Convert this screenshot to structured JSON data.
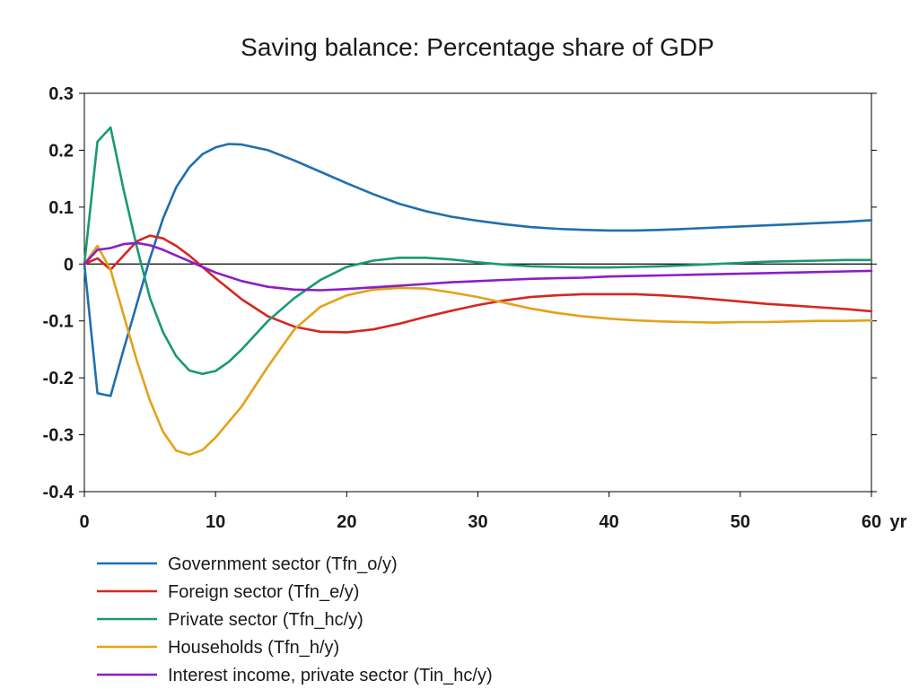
{
  "chart_data": {
    "type": "line",
    "title": "Saving balance: Percentage share of GDP",
    "xlabel": "",
    "ylabel": "",
    "x_unit_label": "yr",
    "xlim": [
      0,
      60
    ],
    "ylim": [
      -0.4,
      0.3
    ],
    "x_ticks": [
      0,
      10,
      20,
      30,
      40,
      50,
      60
    ],
    "x_tick_labels": [
      "0",
      "10",
      "20",
      "30",
      "40",
      "50",
      "60"
    ],
    "y_ticks": [
      -0.4,
      -0.3,
      -0.2,
      -0.1,
      0,
      0.1,
      0.2,
      0.3
    ],
    "y_tick_labels": [
      "-0.4",
      "-0.3",
      "-0.2",
      "-0.1",
      "0",
      "0.1",
      "0.2",
      "0.3"
    ],
    "grid": false,
    "legend_position": "bottom-left",
    "series": [
      {
        "name": "Government sector (Tfn_o/y)",
        "color": "#1f6fb0",
        "points": [
          [
            0,
            0
          ],
          [
            1,
            -0.227
          ],
          [
            2,
            -0.232
          ],
          [
            3,
            -0.15
          ],
          [
            4,
            -0.07
          ],
          [
            5,
            0.01
          ],
          [
            6,
            0.08
          ],
          [
            7,
            0.135
          ],
          [
            8,
            0.17
          ],
          [
            9,
            0.193
          ],
          [
            10,
            0.205
          ],
          [
            11,
            0.211
          ],
          [
            12,
            0.21
          ],
          [
            14,
            0.2
          ],
          [
            16,
            0.182
          ],
          [
            18,
            0.162
          ],
          [
            20,
            0.142
          ],
          [
            22,
            0.123
          ],
          [
            24,
            0.106
          ],
          [
            26,
            0.093
          ],
          [
            28,
            0.083
          ],
          [
            30,
            0.076
          ],
          [
            32,
            0.07
          ],
          [
            34,
            0.065
          ],
          [
            36,
            0.062
          ],
          [
            38,
            0.06
          ],
          [
            40,
            0.059
          ],
          [
            42,
            0.059
          ],
          [
            44,
            0.06
          ],
          [
            46,
            0.062
          ],
          [
            48,
            0.064
          ],
          [
            50,
            0.066
          ],
          [
            52,
            0.068
          ],
          [
            54,
            0.07
          ],
          [
            56,
            0.072
          ],
          [
            58,
            0.074
          ],
          [
            60,
            0.077
          ]
        ]
      },
      {
        "name": "Foreign sector (Tfn_e/y)",
        "color": "#d7261e",
        "points": [
          [
            0,
            0
          ],
          [
            1,
            0.01
          ],
          [
            2,
            -0.01
          ],
          [
            3,
            0.015
          ],
          [
            4,
            0.04
          ],
          [
            5,
            0.05
          ],
          [
            6,
            0.045
          ],
          [
            7,
            0.032
          ],
          [
            8,
            0.015
          ],
          [
            9,
            -0.005
          ],
          [
            10,
            -0.025
          ],
          [
            12,
            -0.062
          ],
          [
            14,
            -0.092
          ],
          [
            16,
            -0.11
          ],
          [
            18,
            -0.119
          ],
          [
            20,
            -0.12
          ],
          [
            22,
            -0.115
          ],
          [
            24,
            -0.105
          ],
          [
            26,
            -0.093
          ],
          [
            28,
            -0.082
          ],
          [
            30,
            -0.072
          ],
          [
            32,
            -0.064
          ],
          [
            34,
            -0.058
          ],
          [
            36,
            -0.055
          ],
          [
            38,
            -0.053
          ],
          [
            40,
            -0.053
          ],
          [
            42,
            -0.053
          ],
          [
            44,
            -0.055
          ],
          [
            46,
            -0.058
          ],
          [
            48,
            -0.062
          ],
          [
            50,
            -0.066
          ],
          [
            52,
            -0.07
          ],
          [
            54,
            -0.073
          ],
          [
            56,
            -0.076
          ],
          [
            58,
            -0.079
          ],
          [
            60,
            -0.083
          ]
        ]
      },
      {
        "name": "Private sector (Tfn_hc/y)",
        "color": "#1a9973",
        "points": [
          [
            0,
            0
          ],
          [
            1,
            0.215
          ],
          [
            2,
            0.24
          ],
          [
            3,
            0.13
          ],
          [
            4,
            0.03
          ],
          [
            5,
            -0.06
          ],
          [
            6,
            -0.12
          ],
          [
            7,
            -0.162
          ],
          [
            8,
            -0.187
          ],
          [
            9,
            -0.193
          ],
          [
            10,
            -0.188
          ],
          [
            11,
            -0.172
          ],
          [
            12,
            -0.15
          ],
          [
            14,
            -0.1
          ],
          [
            16,
            -0.06
          ],
          [
            18,
            -0.028
          ],
          [
            20,
            -0.005
          ],
          [
            22,
            0.006
          ],
          [
            24,
            0.011
          ],
          [
            26,
            0.011
          ],
          [
            28,
            0.008
          ],
          [
            30,
            0.003
          ],
          [
            32,
            -0.001
          ],
          [
            34,
            -0.004
          ],
          [
            36,
            -0.005
          ],
          [
            38,
            -0.006
          ],
          [
            40,
            -0.006
          ],
          [
            42,
            -0.005
          ],
          [
            44,
            -0.004
          ],
          [
            46,
            -0.002
          ],
          [
            48,
            0
          ],
          [
            50,
            0.002
          ],
          [
            52,
            0.004
          ],
          [
            54,
            0.005
          ],
          [
            56,
            0.006
          ],
          [
            58,
            0.007
          ],
          [
            60,
            0.007
          ]
        ]
      },
      {
        "name": "Households (Tfn_h/y)",
        "color": "#e3a218",
        "points": [
          [
            0,
            0
          ],
          [
            1,
            0.032
          ],
          [
            2,
            -0.01
          ],
          [
            3,
            -0.09
          ],
          [
            4,
            -0.17
          ],
          [
            5,
            -0.24
          ],
          [
            6,
            -0.295
          ],
          [
            7,
            -0.328
          ],
          [
            8,
            -0.335
          ],
          [
            9,
            -0.327
          ],
          [
            10,
            -0.305
          ],
          [
            12,
            -0.25
          ],
          [
            14,
            -0.18
          ],
          [
            16,
            -0.115
          ],
          [
            18,
            -0.075
          ],
          [
            20,
            -0.055
          ],
          [
            22,
            -0.045
          ],
          [
            24,
            -0.042
          ],
          [
            26,
            -0.043
          ],
          [
            28,
            -0.05
          ],
          [
            30,
            -0.058
          ],
          [
            32,
            -0.068
          ],
          [
            34,
            -0.078
          ],
          [
            36,
            -0.086
          ],
          [
            38,
            -0.092
          ],
          [
            40,
            -0.096
          ],
          [
            42,
            -0.099
          ],
          [
            44,
            -0.101
          ],
          [
            46,
            -0.102
          ],
          [
            48,
            -0.103
          ],
          [
            50,
            -0.102
          ],
          [
            52,
            -0.102
          ],
          [
            54,
            -0.101
          ],
          [
            56,
            -0.1
          ],
          [
            58,
            -0.1
          ],
          [
            60,
            -0.099
          ]
        ]
      },
      {
        "name": "Interest income, private sector (Tin_hc/y)",
        "color": "#8b1ec8",
        "points": [
          [
            0,
            0
          ],
          [
            1,
            0.025
          ],
          [
            2,
            0.028
          ],
          [
            3,
            0.035
          ],
          [
            4,
            0.037
          ],
          [
            5,
            0.033
          ],
          [
            6,
            0.025
          ],
          [
            7,
            0.015
          ],
          [
            8,
            0.005
          ],
          [
            9,
            -0.005
          ],
          [
            10,
            -0.015
          ],
          [
            12,
            -0.03
          ],
          [
            14,
            -0.04
          ],
          [
            16,
            -0.045
          ],
          [
            18,
            -0.046
          ],
          [
            20,
            -0.044
          ],
          [
            22,
            -0.041
          ],
          [
            24,
            -0.038
          ],
          [
            26,
            -0.035
          ],
          [
            28,
            -0.032
          ],
          [
            30,
            -0.03
          ],
          [
            32,
            -0.028
          ],
          [
            34,
            -0.026
          ],
          [
            36,
            -0.025
          ],
          [
            38,
            -0.024
          ],
          [
            40,
            -0.022
          ],
          [
            42,
            -0.021
          ],
          [
            44,
            -0.02
          ],
          [
            46,
            -0.019
          ],
          [
            48,
            -0.018
          ],
          [
            50,
            -0.017
          ],
          [
            52,
            -0.016
          ],
          [
            54,
            -0.015
          ],
          [
            56,
            -0.014
          ],
          [
            58,
            -0.013
          ],
          [
            60,
            -0.012
          ]
        ]
      }
    ]
  }
}
